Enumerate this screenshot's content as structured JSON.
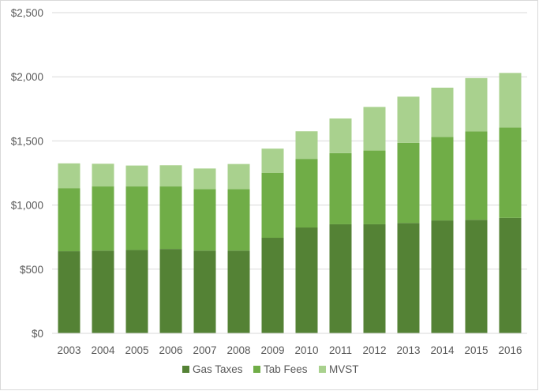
{
  "chart_data": {
    "type": "bar",
    "stacked": true,
    "title": "",
    "xlabel": "",
    "ylabel": "",
    "ylim": [
      0,
      2500
    ],
    "y_ticks": [
      0,
      500,
      1000,
      1500,
      2000,
      2500
    ],
    "y_tick_labels": [
      "$0",
      "$500",
      "$1,000",
      "$1,500",
      "$2,000",
      "$2,500"
    ],
    "grid": true,
    "legend_position": "bottom",
    "categories": [
      "2003",
      "2004",
      "2005",
      "2006",
      "2007",
      "2008",
      "2009",
      "2010",
      "2011",
      "2012",
      "2013",
      "2014",
      "2015",
      "2016"
    ],
    "series": [
      {
        "name": "Gas Taxes",
        "color": "#548235",
        "values": [
          640,
          645,
          650,
          658,
          645,
          645,
          745,
          825,
          850,
          850,
          860,
          880,
          885,
          900
        ]
      },
      {
        "name": "Tab Fees",
        "color": "#70ad47",
        "values": [
          492,
          500,
          495,
          487,
          480,
          480,
          505,
          535,
          555,
          575,
          625,
          650,
          690,
          705
        ]
      },
      {
        "name": "MVST",
        "color": "#a9d18e",
        "values": [
          193,
          177,
          163,
          165,
          160,
          195,
          190,
          215,
          270,
          340,
          360,
          385,
          415,
          425
        ]
      }
    ]
  }
}
